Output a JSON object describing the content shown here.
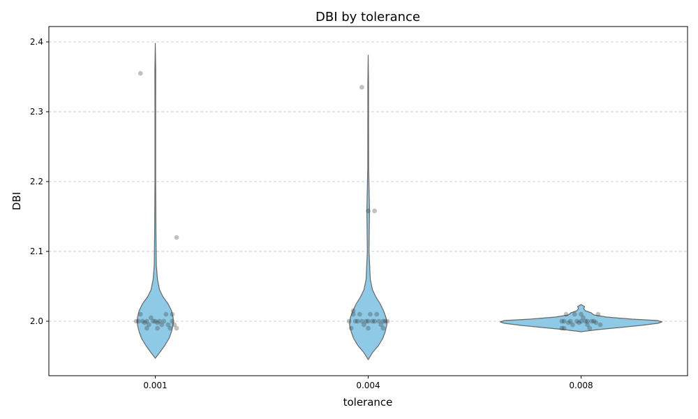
{
  "chart_data": {
    "type": "violin",
    "title": "DBI by tolerance",
    "xlabel": "tolerance",
    "ylabel": "DBI",
    "categories": [
      "0.001",
      "0.004",
      "0.008"
    ],
    "yticks": [
      "2.0",
      "2.1",
      "2.2",
      "2.3",
      "2.4"
    ],
    "ylim": [
      1.922,
      2.422
    ],
    "grid": "y-dashed",
    "violin_color": "#8ecae6",
    "violin_edge_color": "#666666",
    "point_color": "#333333",
    "violins": [
      {
        "category": "0.001",
        "profile": [
          [
            1.947,
            0.0
          ],
          [
            1.955,
            0.05
          ],
          [
            1.965,
            0.11
          ],
          [
            1.975,
            0.16
          ],
          [
            1.985,
            0.19
          ],
          [
            1.995,
            0.21
          ],
          [
            2.005,
            0.21
          ],
          [
            2.015,
            0.19
          ],
          [
            2.025,
            0.15
          ],
          [
            2.035,
            0.09
          ],
          [
            2.045,
            0.05
          ],
          [
            2.06,
            0.025
          ],
          [
            2.08,
            0.012
          ],
          [
            2.12,
            0.008
          ],
          [
            2.2,
            0.004
          ],
          [
            2.3,
            0.004
          ],
          [
            2.36,
            0.005
          ],
          [
            2.398,
            0.0
          ]
        ]
      },
      {
        "category": "0.004",
        "profile": [
          [
            1.945,
            0.0
          ],
          [
            1.955,
            0.05
          ],
          [
            1.965,
            0.12
          ],
          [
            1.975,
            0.17
          ],
          [
            1.985,
            0.2
          ],
          [
            1.995,
            0.22
          ],
          [
            2.005,
            0.21
          ],
          [
            2.015,
            0.18
          ],
          [
            2.025,
            0.14
          ],
          [
            2.035,
            0.09
          ],
          [
            2.045,
            0.05
          ],
          [
            2.06,
            0.025
          ],
          [
            2.1,
            0.01
          ],
          [
            2.15,
            0.015
          ],
          [
            2.165,
            0.015
          ],
          [
            2.22,
            0.005
          ],
          [
            2.3,
            0.004
          ],
          [
            2.34,
            0.004
          ],
          [
            2.381,
            0.0
          ]
        ]
      },
      {
        "category": "0.008",
        "profile": [
          [
            1.985,
            0.0
          ],
          [
            1.988,
            0.2
          ],
          [
            1.991,
            0.45
          ],
          [
            1.994,
            0.7
          ],
          [
            1.997,
            0.9
          ],
          [
            1.999,
            0.95
          ],
          [
            2.001,
            0.9
          ],
          [
            2.003,
            0.6
          ],
          [
            2.006,
            0.3
          ],
          [
            2.009,
            0.15
          ],
          [
            2.012,
            0.12
          ],
          [
            2.015,
            0.05
          ],
          [
            2.018,
            0.03
          ],
          [
            2.021,
            0.04
          ],
          [
            2.024,
            0.0
          ]
        ]
      }
    ],
    "points": [
      {
        "category": "0.001",
        "values": [
          [
            -0.09,
            2.0
          ],
          [
            -0.08,
            2.0
          ],
          [
            -0.07,
            2.01
          ],
          [
            -0.06,
            2.0
          ],
          [
            -0.05,
            1.998
          ],
          [
            -0.04,
            2.0
          ],
          [
            -0.03,
            1.995
          ],
          [
            -0.02,
            2.005
          ],
          [
            -0.01,
            2.0
          ],
          [
            0.0,
            2.0
          ],
          [
            0.01,
            1.998
          ],
          [
            0.02,
            2.0
          ],
          [
            0.03,
            1.995
          ],
          [
            0.04,
            2.0
          ],
          [
            0.05,
            2.01
          ],
          [
            0.06,
            1.995
          ],
          [
            0.07,
            1.99
          ],
          [
            0.08,
            2.0
          ],
          [
            0.09,
            1.995
          ],
          [
            -0.04,
            1.99
          ],
          [
            0.01,
            1.99
          ],
          [
            0.08,
            2.01
          ],
          [
            0.1,
            1.99
          ],
          [
            -0.07,
            2.355
          ],
          [
            0.1,
            2.12
          ]
        ]
      },
      {
        "category": "0.004",
        "values": [
          [
            -0.09,
            2.0
          ],
          [
            -0.08,
            1.99
          ],
          [
            -0.07,
            2.01
          ],
          [
            -0.06,
            2.0
          ],
          [
            -0.05,
            2.0
          ],
          [
            -0.04,
            2.01
          ],
          [
            -0.03,
            2.0
          ],
          [
            -0.02,
            1.995
          ],
          [
            -0.01,
            2.0
          ],
          [
            0.0,
            2.0
          ],
          [
            0.01,
            2.01
          ],
          [
            0.02,
            2.0
          ],
          [
            0.03,
            2.0
          ],
          [
            0.04,
            2.01
          ],
          [
            0.05,
            2.0
          ],
          [
            0.06,
            1.995
          ],
          [
            0.07,
            2.0
          ],
          [
            0.08,
            2.0
          ],
          [
            0.09,
            2.0
          ],
          [
            -0.07,
            2.015
          ],
          [
            0.0,
            1.99
          ],
          [
            0.07,
            1.99
          ],
          [
            -0.03,
            2.335
          ],
          [
            0.0,
            2.158
          ],
          [
            0.03,
            2.158
          ]
        ]
      },
      {
        "category": "0.008",
        "values": [
          [
            -0.09,
            1.99
          ],
          [
            -0.08,
            2.0
          ],
          [
            -0.07,
            2.01
          ],
          [
            -0.06,
            1.998
          ],
          [
            -0.05,
            2.0
          ],
          [
            -0.04,
            1.995
          ],
          [
            -0.03,
            2.01
          ],
          [
            -0.02,
            2.0
          ],
          [
            -0.01,
            1.998
          ],
          [
            0.0,
            2.0
          ],
          [
            0.01,
            2.005
          ],
          [
            0.02,
            2.0
          ],
          [
            0.03,
            1.995
          ],
          [
            0.04,
            1.99
          ],
          [
            0.05,
            2.0
          ],
          [
            0.06,
            2.0
          ],
          [
            0.07,
            1.998
          ],
          [
            0.08,
            2.01
          ],
          [
            0.09,
            1.995
          ],
          [
            -0.09,
            2.0
          ],
          [
            -0.08,
            1.99
          ],
          [
            0.0,
            2.01
          ],
          [
            0.03,
            2.0
          ]
        ]
      }
    ]
  }
}
